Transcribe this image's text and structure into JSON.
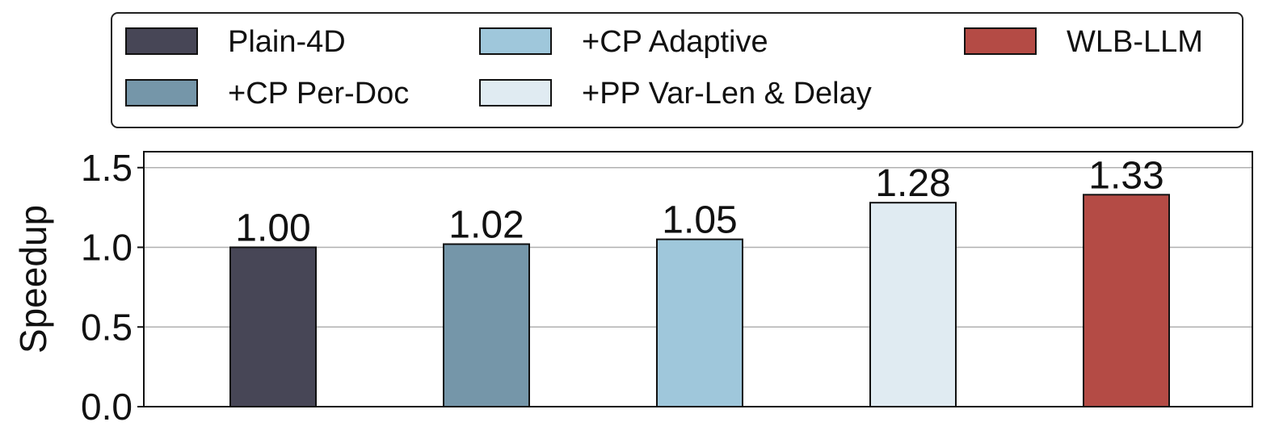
{
  "chart_data": {
    "type": "bar",
    "categories": [
      "Plain-4D",
      "+CP Per-Doc",
      "+CP Adaptive",
      "+PP Var-Len & Delay",
      "WLB-LLM"
    ],
    "values": [
      1.0,
      1.02,
      1.05,
      1.28,
      1.33
    ],
    "value_labels": [
      "1.00",
      "1.02",
      "1.05",
      "1.28",
      "1.33"
    ],
    "colors": [
      "#474656",
      "#7596a9",
      "#9fc7db",
      "#e0ebf2",
      "#b44b45"
    ],
    "title": "",
    "xlabel": "",
    "ylabel": "Speedup",
    "ylim": [
      0,
      1.6
    ],
    "yticks": [
      0.0,
      0.5,
      1.0,
      1.5
    ],
    "ytick_labels": [
      "0.0",
      "0.5",
      "1.0",
      "1.5"
    ],
    "grid": "horizontal",
    "legend": {
      "placement": "top",
      "columns": 3,
      "entries": [
        "Plain-4D",
        "+CP Per-Doc",
        "+CP Adaptive",
        "+PP Var-Len & Delay",
        "WLB-LLM"
      ]
    }
  }
}
